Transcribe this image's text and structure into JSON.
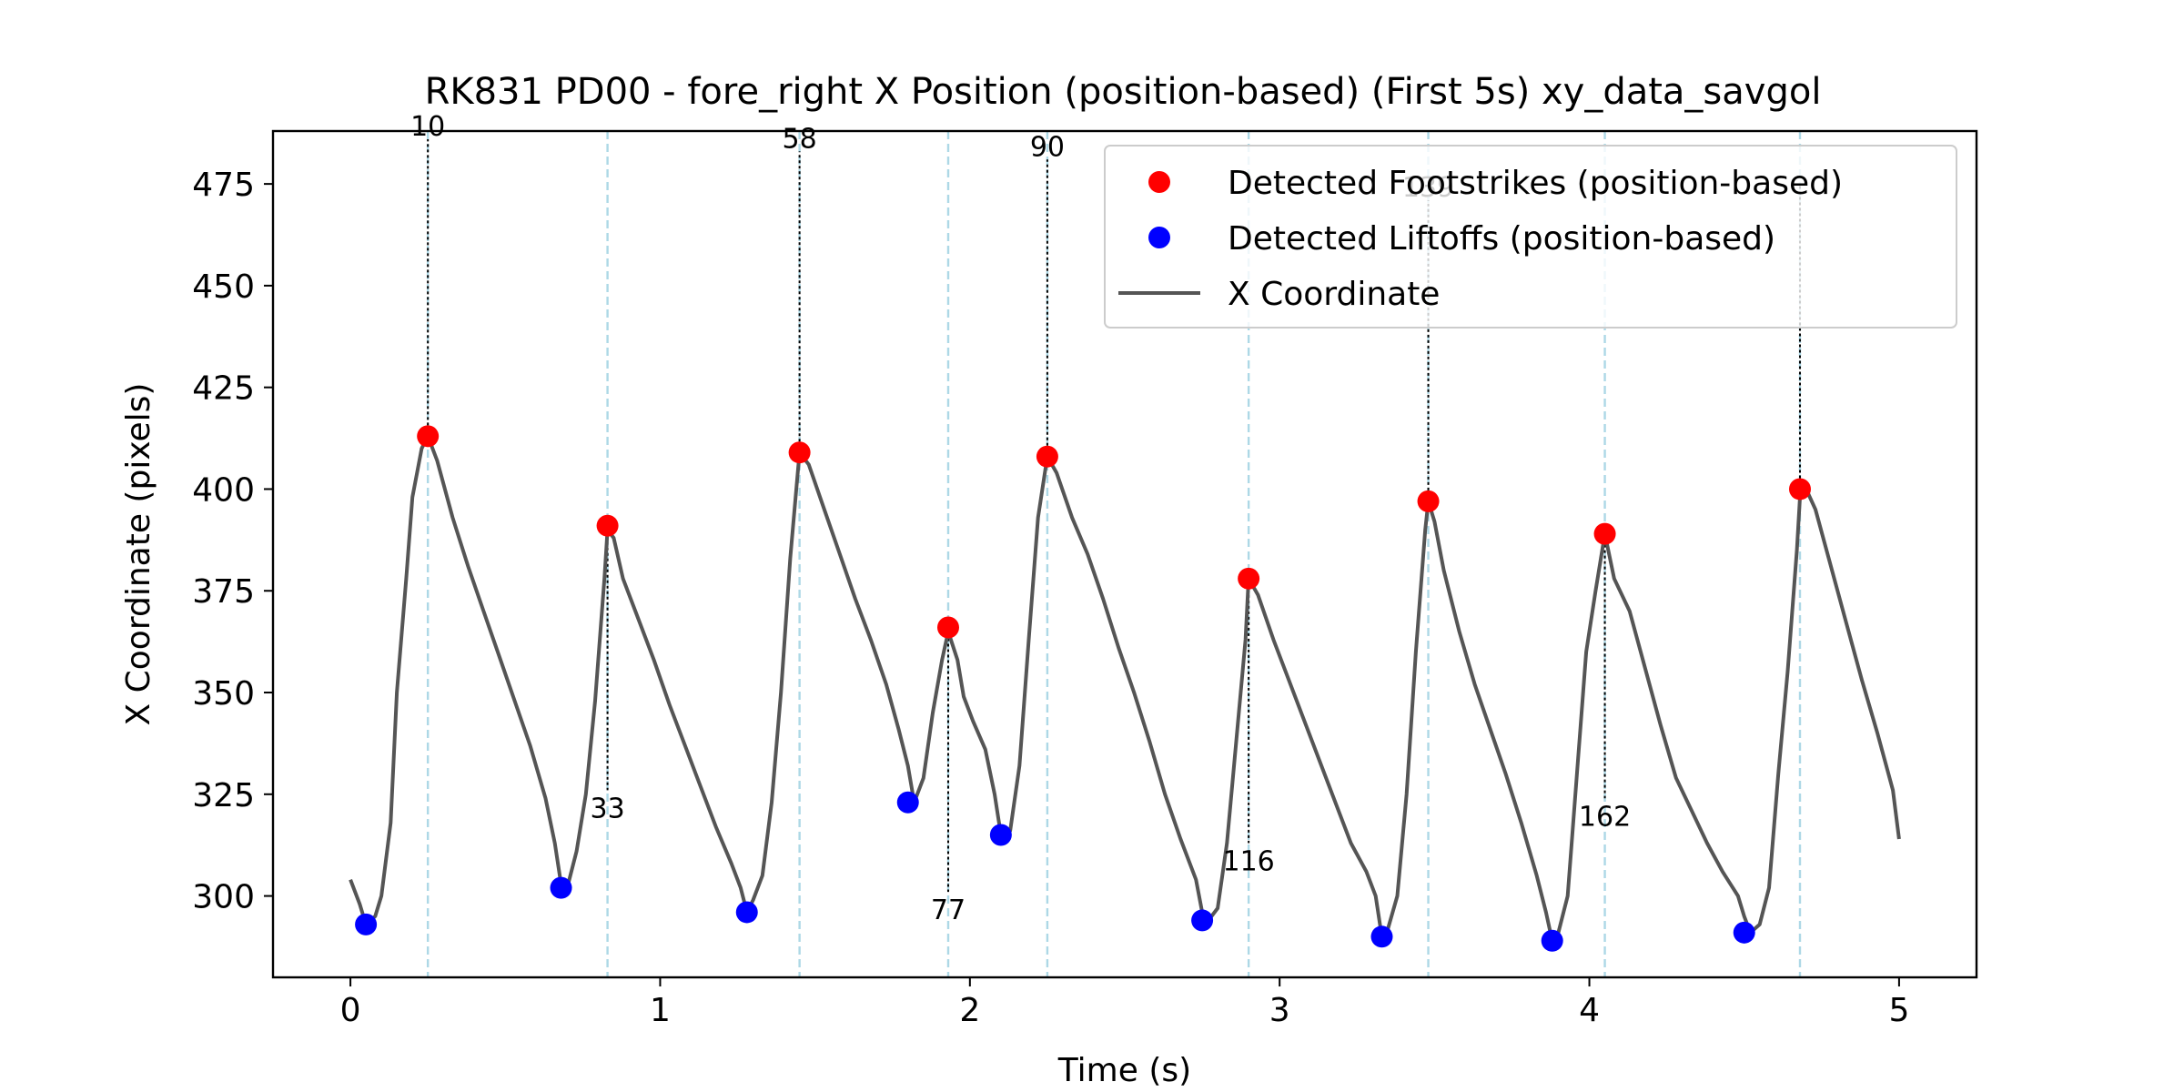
{
  "chart_data": {
    "type": "line",
    "title": "RK831 PD00 - fore_right X Position (position-based) (First 5s) xy_data_savgol",
    "xlabel": "Time (s)",
    "ylabel": "X Coordinate (pixels)",
    "xlim": [
      -0.25,
      5.25
    ],
    "ylim": [
      280,
      488
    ],
    "xticks": [
      "0",
      "1",
      "2",
      "3",
      "4",
      "5"
    ],
    "yticks": [
      "300",
      "325",
      "350",
      "375",
      "400",
      "425",
      "450",
      "475"
    ],
    "grid": false,
    "legend_position": "top-right",
    "legend": [
      {
        "label": "Detected Footstrikes (position-based)",
        "kind": "marker",
        "color": "#ff0000"
      },
      {
        "label": "Detected Liftoffs (position-based)",
        "kind": "marker",
        "color": "#0000ff"
      },
      {
        "label": "X Coordinate",
        "kind": "line",
        "color": "#555555"
      }
    ],
    "series": [
      {
        "name": "X Coordinate",
        "color": "#555555",
        "x": [
          0.0,
          0.03,
          0.05,
          0.08,
          0.1,
          0.13,
          0.15,
          0.18,
          0.2,
          0.23,
          0.25,
          0.28,
          0.33,
          0.38,
          0.43,
          0.48,
          0.53,
          0.58,
          0.63,
          0.66,
          0.68,
          0.7,
          0.73,
          0.76,
          0.79,
          0.82,
          0.83,
          0.85,
          0.88,
          0.93,
          0.98,
          1.03,
          1.08,
          1.13,
          1.18,
          1.23,
          1.26,
          1.28,
          1.3,
          1.33,
          1.36,
          1.39,
          1.42,
          1.45,
          1.48,
          1.53,
          1.58,
          1.63,
          1.68,
          1.73,
          1.77,
          1.8,
          1.82,
          1.85,
          1.88,
          1.91,
          1.93,
          1.96,
          1.98,
          2.01,
          2.05,
          2.08,
          2.1,
          2.13,
          2.16,
          2.19,
          2.22,
          2.25,
          2.28,
          2.33,
          2.38,
          2.43,
          2.48,
          2.53,
          2.58,
          2.63,
          2.68,
          2.73,
          2.75,
          2.77,
          2.8,
          2.83,
          2.86,
          2.89,
          2.9,
          2.93,
          2.98,
          3.03,
          3.08,
          3.13,
          3.18,
          3.23,
          3.28,
          3.31,
          3.33,
          3.35,
          3.38,
          3.41,
          3.44,
          3.47,
          3.48,
          3.5,
          3.53,
          3.58,
          3.63,
          3.68,
          3.73,
          3.78,
          3.83,
          3.86,
          3.88,
          3.9,
          3.93,
          3.96,
          3.99,
          4.02,
          4.05,
          4.08,
          4.13,
          4.18,
          4.23,
          4.28,
          4.33,
          4.38,
          4.43,
          4.48,
          4.5,
          4.52,
          4.55,
          4.58,
          4.61,
          4.64,
          4.67,
          4.68,
          4.7,
          4.73,
          4.78,
          4.83,
          4.88,
          4.93,
          4.98,
          5.0
        ],
        "values": [
          304,
          298,
          293,
          295,
          300,
          318,
          350,
          378,
          398,
          410,
          413,
          407,
          393,
          381,
          370,
          359,
          348,
          337,
          324,
          313,
          303,
          302,
          311,
          325,
          348,
          378,
          390,
          388,
          378,
          368,
          358,
          347,
          337,
          327,
          317,
          308,
          302,
          296,
          299,
          305,
          323,
          350,
          383,
          409,
          406,
          395,
          384,
          373,
          363,
          352,
          341,
          332,
          323,
          329,
          345,
          358,
          365,
          358,
          349,
          343,
          336,
          325,
          315,
          316,
          332,
          363,
          393,
          408,
          404,
          393,
          384,
          373,
          361,
          350,
          338,
          325,
          314,
          304,
          296,
          294,
          297,
          313,
          338,
          363,
          378,
          374,
          363,
          353,
          343,
          333,
          323,
          313,
          306,
          300,
          290,
          292,
          300,
          325,
          360,
          390,
          397,
          392,
          380,
          365,
          352,
          341,
          330,
          318,
          305,
          296,
          289,
          291,
          300,
          330,
          360,
          375,
          389,
          378,
          370,
          356,
          342,
          329,
          321,
          313,
          306,
          300,
          295,
          291,
          293,
          302,
          330,
          355,
          385,
          398,
          400,
          395,
          381,
          367,
          353,
          340,
          326,
          314
        ],
        "footstrikes": [
          {
            "x": 0.25,
            "y": 413,
            "label": "10"
          },
          {
            "x": 0.83,
            "y": 391,
            "label": "33"
          },
          {
            "x": 1.45,
            "y": 409,
            "label": "58"
          },
          {
            "x": 1.93,
            "y": 366,
            "label": "77"
          },
          {
            "x": 2.25,
            "y": 408,
            "label": "90"
          },
          {
            "x": 2.9,
            "y": 378,
            "label": "116"
          },
          {
            "x": 3.48,
            "y": 397,
            "label": "139"
          },
          {
            "x": 4.05,
            "y": 389,
            "label": "162"
          },
          {
            "x": 4.68,
            "y": 400,
            "label": ""
          }
        ],
        "liftoffs": [
          {
            "x": 0.05,
            "y": 293
          },
          {
            "x": 0.68,
            "y": 302
          },
          {
            "x": 1.28,
            "y": 296
          },
          {
            "x": 1.8,
            "y": 323
          },
          {
            "x": 2.1,
            "y": 315
          },
          {
            "x": 2.75,
            "y": 294
          },
          {
            "x": 3.33,
            "y": 290
          },
          {
            "x": 3.88,
            "y": 289
          },
          {
            "x": 4.5,
            "y": 291
          }
        ]
      }
    ],
    "label_ends": [
      {
        "label": "10",
        "y": 486
      },
      {
        "label": "33",
        "y": 326
      },
      {
        "label": "58",
        "y": 483
      },
      {
        "label": "77",
        "y": 301
      },
      {
        "label": "90",
        "y": 481
      },
      {
        "label": "116",
        "y": 313
      },
      {
        "label": "139",
        "y": 471
      },
      {
        "label": "162",
        "y": 324
      },
      {
        "label": "",
        "y": 475
      }
    ]
  }
}
